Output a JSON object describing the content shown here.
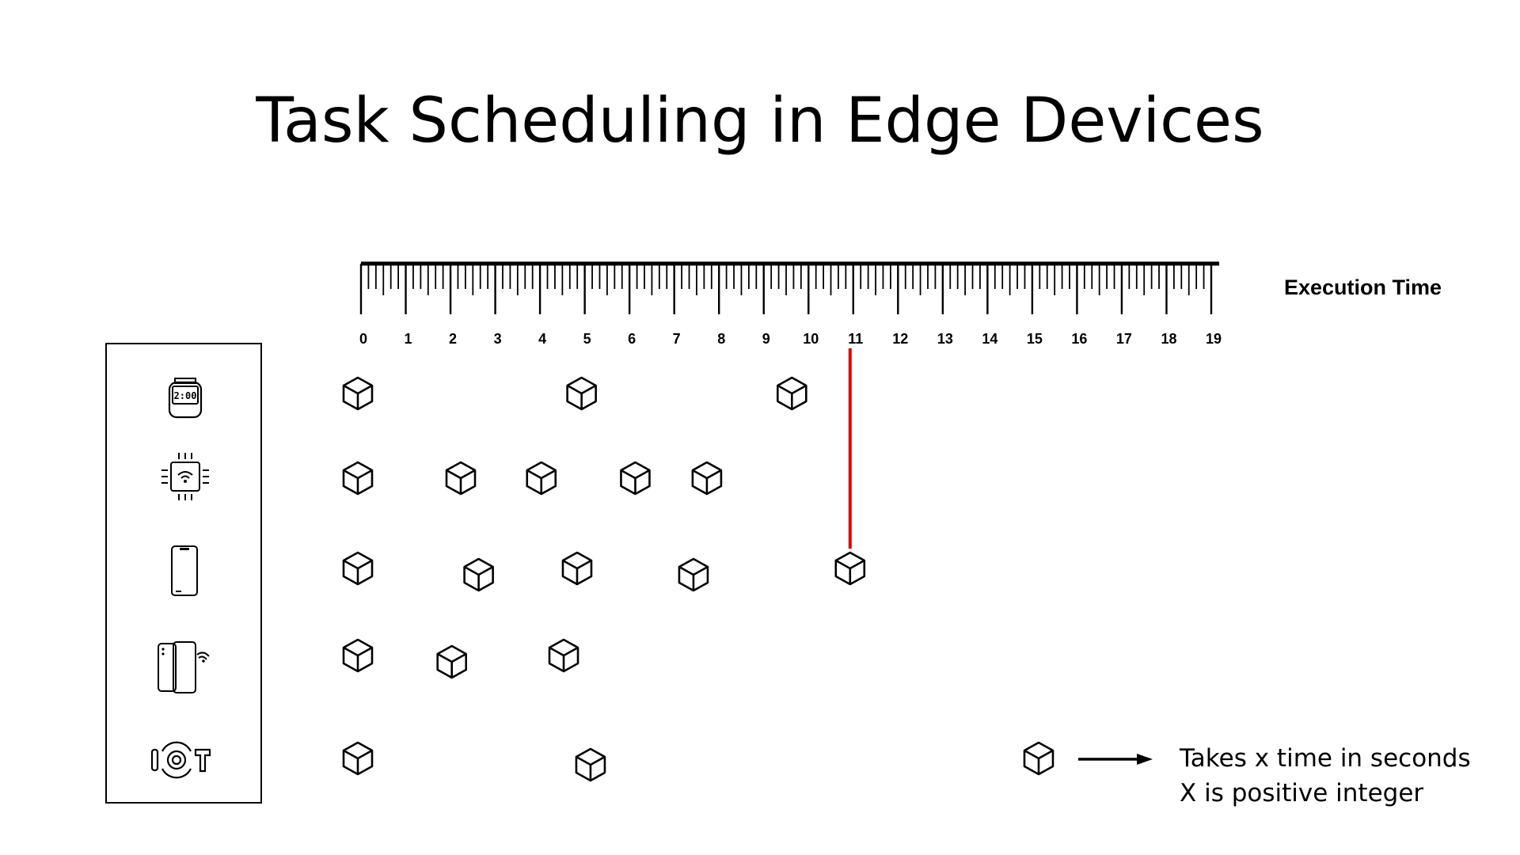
{
  "title": "Task Scheduling in Edge Devices",
  "axis": {
    "label": "Execution Time",
    "ticks": [
      "0",
      "1",
      "2",
      "3",
      "4",
      "5",
      "6",
      "7",
      "8",
      "9",
      "10",
      "11",
      "12",
      "13",
      "14",
      "15",
      "16",
      "17",
      "18",
      "19"
    ],
    "min": 0,
    "max": 19,
    "marker_time": 11,
    "marker_color": "#e00000"
  },
  "devices": [
    {
      "icon": "smartwatch-icon",
      "tasks": [
        0,
        5,
        9.7
      ]
    },
    {
      "icon": "iot-chip-icon",
      "tasks": [
        0,
        2.3,
        4.1,
        6.2,
        7.8
      ]
    },
    {
      "icon": "smartphone-icon",
      "tasks": [
        0,
        2.7,
        4.9,
        7.5,
        11
      ]
    },
    {
      "icon": "foldable-phone-icon",
      "tasks": [
        0,
        2.1,
        4.6
      ]
    },
    {
      "icon": "iot-sensor-icon",
      "tasks": [
        0,
        5.2
      ]
    }
  ],
  "watch_display": "2:00",
  "legend": {
    "icon": "task-cube-icon",
    "arrow_icon": "arrow-right-icon",
    "line1": "Takes x time in seconds",
    "line2": "X is positive integer"
  }
}
